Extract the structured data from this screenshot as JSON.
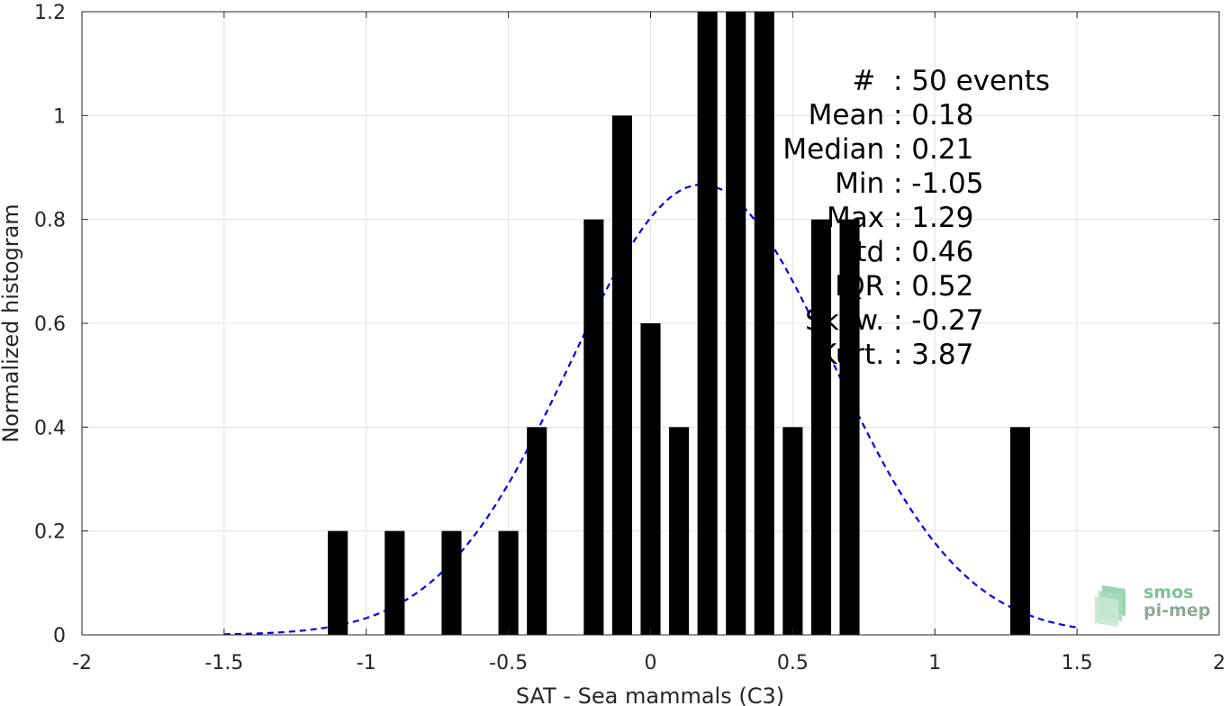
{
  "chart_data": {
    "type": "bar",
    "xlabel": "SAT - Sea mammals (C3)",
    "ylabel": "Normalized histogram",
    "xlim": [
      -2,
      2
    ],
    "ylim": [
      0,
      1.2
    ],
    "grid": true,
    "xticks": [
      "-2",
      "-1.5",
      "-1",
      "-0.5",
      "0",
      "0.5",
      "1",
      "1.5",
      "2"
    ],
    "yticks": [
      "0",
      "0.2",
      "0.4",
      "0.6",
      "0.8",
      "1",
      "1.2"
    ],
    "bar_width": 0.07,
    "bars": [
      {
        "x": -1.1,
        "y": 0.2
      },
      {
        "x": -0.9,
        "y": 0.2
      },
      {
        "x": -0.7,
        "y": 0.2
      },
      {
        "x": -0.5,
        "y": 0.2
      },
      {
        "x": -0.4,
        "y": 0.4
      },
      {
        "x": -0.2,
        "y": 0.8
      },
      {
        "x": -0.1,
        "y": 1.0
      },
      {
        "x": 0.0,
        "y": 0.6
      },
      {
        "x": 0.1,
        "y": 0.4
      },
      {
        "x": 0.2,
        "y": 1.2
      },
      {
        "x": 0.3,
        "y": 1.2
      },
      {
        "x": 0.4,
        "y": 1.2
      },
      {
        "x": 0.5,
        "y": 0.4
      },
      {
        "x": 0.6,
        "y": 0.8
      },
      {
        "x": 0.7,
        "y": 0.8
      },
      {
        "x": 1.3,
        "y": 0.4
      }
    ],
    "fit_curve": {
      "style": "dashed",
      "color": "#0000ee",
      "x_range": [
        -1.5,
        1.5
      ],
      "mean": 0.18,
      "std": 0.46
    },
    "bar_color": "#000000",
    "stats": [
      {
        "label": "#  ",
        "value": ": 50 events"
      },
      {
        "label": "Mean ",
        "value": ": 0.18"
      },
      {
        "label": "Median ",
        "value": ": 0.21"
      },
      {
        "label": "Min ",
        "value": ": -1.05"
      },
      {
        "label": "Max ",
        "value": ": 1.29"
      },
      {
        "label": "Std ",
        "value": ": 0.46"
      },
      {
        "label": "IQR ",
        "value": ": 0.52"
      },
      {
        "label": "Skew. ",
        "value": ": -0.27"
      },
      {
        "label": "Kurt. ",
        "value": ": 3.87"
      }
    ]
  },
  "logo": {
    "line1": "smos",
    "line2": "pi-mep",
    "color1": "#7cc29a",
    "color2": "#8fa89a"
  }
}
